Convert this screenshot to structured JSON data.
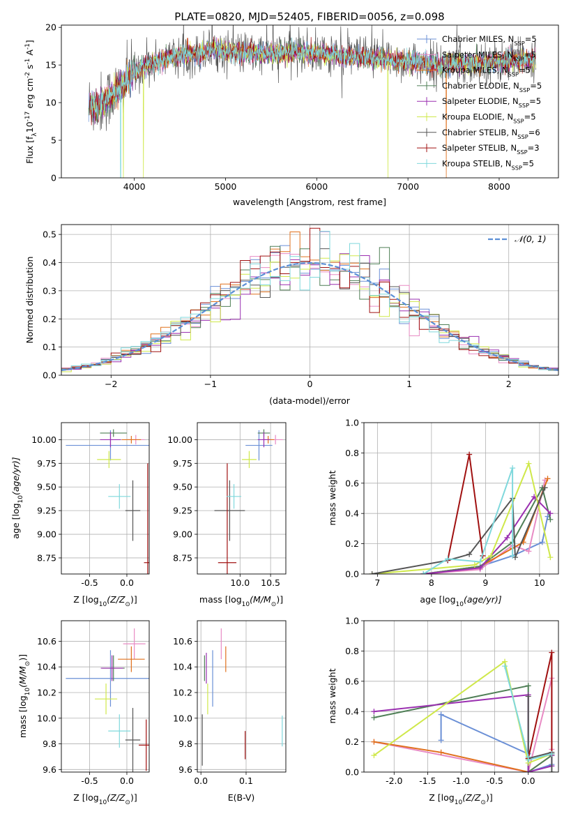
{
  "figure": {
    "title": "PLATE=0820, MJD=52405, FIBERID=0056, z=0.098"
  },
  "series_styles": [
    {
      "name": "Chabrier MILES, N$_{SSP}$=5",
      "label": "Chabrier MILES, N",
      "sub": "SSP",
      "suffix": "=5",
      "color": "#6a8fd6"
    },
    {
      "name": "Salpeter MILES, N$_{SSP}$=5",
      "label": "Salpeter MILES, N",
      "sub": "SSP",
      "suffix": "=5",
      "color": "#e88bc4"
    },
    {
      "name": "Kroupa MILES, N$_{SSP}$=5",
      "label": "Kroupa MILES, N",
      "sub": "SSP",
      "suffix": "=5",
      "color": "#e0701c"
    },
    {
      "name": "Chabrier ELODIE, N$_{SSP}$=5",
      "label": "Chabrier ELODIE, N",
      "sub": "SSP",
      "suffix": "=5",
      "color": "#4f7f56"
    },
    {
      "name": "Salpeter ELODIE, N$_{SSP}$=5",
      "label": "Salpeter ELODIE, N",
      "sub": "SSP",
      "suffix": "=5",
      "color": "#9a2fb0"
    },
    {
      "name": "Kroupa ELODIE, N$_{SSP}$=5",
      "label": "Kroupa ELODIE, N",
      "sub": "SSP",
      "suffix": "=5",
      "color": "#cfe84a"
    },
    {
      "name": "Chabrier STELIB, N$_{SSP}$=6",
      "label": "Chabrier STELIB, N",
      "sub": "SSP",
      "suffix": "=6",
      "color": "#555555"
    },
    {
      "name": "Salpeter STELIB, N$_{SSP}$=3",
      "label": "Salpeter STELIB, N",
      "sub": "SSP",
      "suffix": "=3",
      "color": "#a01010"
    },
    {
      "name": "Kroupa STELIB, N$_{SSP}$=5",
      "label": "Kroupa STELIB, N",
      "sub": "SSP",
      "suffix": "=5",
      "color": "#7fd8dc"
    }
  ],
  "chart_data": [
    {
      "id": "spectrum",
      "type": "line",
      "xlabel": "wavelength [Angstrom, rest frame]",
      "ylabel_parts": [
        "Flux [f",
        "λ",
        "10",
        "-17",
        " erg cm",
        "-2",
        " s",
        "-1",
        " A",
        "-1",
        "]"
      ],
      "xlim": [
        3200,
        8650
      ],
      "ylim": [
        0,
        20.3
      ],
      "xticks": [
        4000,
        5000,
        6000,
        7000,
        8000
      ],
      "yticks": [
        0,
        5,
        10,
        15,
        20
      ],
      "legend_position": "upper right",
      "profile_wavelength": [
        3500,
        3600,
        3700,
        3800,
        3900,
        4000,
        4100,
        4200,
        4300,
        4400,
        4500,
        4600,
        4700,
        4800,
        4900,
        5000,
        5200,
        5400,
        5600,
        5800,
        6000,
        6200,
        6400,
        6600,
        6800,
        7000,
        7200,
        7400,
        7600,
        7800,
        8000,
        8200,
        8400
      ],
      "profile_flux": [
        9.8,
        9.5,
        10.5,
        11.5,
        12.5,
        14.0,
        15.0,
        15.3,
        15.6,
        16.0,
        16.2,
        16.5,
        16.5,
        16.8,
        17.2,
        16.8,
        16.6,
        16.5,
        16.6,
        16.7,
        16.5,
        16.3,
        16.1,
        15.9,
        15.7,
        15.5,
        15.2,
        15.0,
        15.2,
        15.3,
        15.4,
        15.6,
        15.7
      ],
      "drops": [
        {
          "series": 2,
          "wavelength": 3480
        },
        {
          "series": 5,
          "wavelength": 3880
        },
        {
          "series": 8,
          "wavelength": 3850
        },
        {
          "series": 5,
          "wavelength": 4100
        },
        {
          "series": 2,
          "wavelength": 7420
        },
        {
          "series": 5,
          "wavelength": 6780
        }
      ]
    },
    {
      "id": "residual-histogram",
      "type": "step",
      "xlabel": "(data-model)/error",
      "ylabel": "Normed distribution",
      "xlim": [
        -2.5,
        2.5
      ],
      "ylim": [
        0,
        0.535
      ],
      "xticks": [
        -2,
        -1,
        0,
        1,
        2
      ],
      "yticks": [
        0,
        0.1,
        0.2,
        0.3,
        0.4,
        0.5
      ],
      "bin_width": 0.1,
      "legend": "𝒩(0, 1)",
      "legend_position": "upper right",
      "gaussian_color": "#5b8fd6"
    },
    {
      "id": "age-vs-Z",
      "type": "scatter",
      "xlabel_parts": [
        "Z [log",
        "10",
        "(Z/Z",
        "⊙",
        ")]"
      ],
      "ylabel_parts": [
        "age  [log",
        "10",
        "(age/yr)]"
      ],
      "xlim": [
        -0.88,
        0.3
      ],
      "ylim": [
        8.58,
        10.18
      ],
      "xticks": [
        -0.5,
        0.0
      ],
      "yticks": [
        8.75,
        9.0,
        9.25,
        9.5,
        9.75,
        10.0
      ],
      "points": [
        {
          "series": 0,
          "x": -0.22,
          "y": 9.94,
          "xerr": 0.6,
          "yerr": 0.16
        },
        {
          "series": 1,
          "x": 0.12,
          "y": 10.0,
          "xerr": 0.12,
          "yerr": 0.05
        },
        {
          "series": 2,
          "x": 0.06,
          "y": 10.0,
          "xerr": 0.13,
          "yerr": 0.04
        },
        {
          "series": 3,
          "x": -0.18,
          "y": 10.07,
          "xerr": 0.18,
          "yerr": 0.04
        },
        {
          "series": 4,
          "x": -0.22,
          "y": 10.0,
          "xerr": 0.14,
          "yerr": 0.08
        },
        {
          "series": 5,
          "x": -0.24,
          "y": 9.79,
          "xerr": 0.16,
          "yerr": 0.09
        },
        {
          "series": 6,
          "x": 0.08,
          "y": 9.25,
          "xerr": 0.1,
          "yerr": 0.32
        },
        {
          "series": 7,
          "x": 0.28,
          "y": 8.7,
          "xerr": 0.05,
          "yerr": 1.05
        },
        {
          "series": 8,
          "x": -0.1,
          "y": 9.4,
          "xerr": 0.15,
          "yerr": 0.13
        }
      ]
    },
    {
      "id": "age-vs-mass",
      "type": "scatter",
      "xlabel_parts": [
        "mass [log",
        "10",
        "(M/M",
        "⊙",
        ")]"
      ],
      "ylabel_parts": [],
      "xlim": [
        9.3,
        10.75
      ],
      "ylim": [
        8.58,
        10.18
      ],
      "xticks": [
        10.0,
        10.5
      ],
      "yticks": [
        8.75,
        9.0,
        9.25,
        9.5,
        9.75,
        10.0
      ],
      "points": [
        {
          "series": 0,
          "x": 10.31,
          "y": 9.94,
          "xerr": 0.22,
          "yerr": 0.16
        },
        {
          "series": 1,
          "x": 10.58,
          "y": 10.0,
          "xerr": 0.12,
          "yerr": 0.05
        },
        {
          "series": 2,
          "x": 10.46,
          "y": 10.0,
          "xerr": 0.1,
          "yerr": 0.04
        },
        {
          "series": 3,
          "x": 10.39,
          "y": 10.07,
          "xerr": 0.1,
          "yerr": 0.04
        },
        {
          "series": 4,
          "x": 10.39,
          "y": 10.0,
          "xerr": 0.1,
          "yerr": 0.08
        },
        {
          "series": 5,
          "x": 10.15,
          "y": 9.79,
          "xerr": 0.12,
          "yerr": 0.09
        },
        {
          "series": 6,
          "x": 9.83,
          "y": 9.25,
          "xerr": 0.25,
          "yerr": 0.32
        },
        {
          "series": 7,
          "x": 9.79,
          "y": 8.7,
          "xerr": 0.15,
          "yerr": 1.05
        },
        {
          "series": 8,
          "x": 9.9,
          "y": 9.4,
          "xerr": 0.12,
          "yerr": 0.13
        }
      ]
    },
    {
      "id": "mass-weight-vs-age",
      "type": "line",
      "xlabel_parts": [
        "age  [log",
        "10",
        "(age/yr)]"
      ],
      "ylabel": "mass weight",
      "xlim": [
        6.75,
        10.35
      ],
      "ylim": [
        0,
        1.0
      ],
      "xticks": [
        7,
        8,
        9,
        10
      ],
      "yticks": [
        0,
        0.2,
        0.4,
        0.6,
        0.8,
        1.0
      ],
      "series_points": [
        {
          "series": 0,
          "x": [
            7.85,
            8.9,
            9.5,
            10.05,
            10.15
          ],
          "y": [
            0.0,
            0.05,
            0.12,
            0.21,
            0.38
          ]
        },
        {
          "series": 1,
          "x": [
            7.85,
            8.9,
            9.5,
            9.8,
            10.1
          ],
          "y": [
            0.0,
            0.03,
            0.19,
            0.15,
            0.62
          ]
        },
        {
          "series": 2,
          "x": [
            7.85,
            8.9,
            9.5,
            9.7,
            10.15
          ],
          "y": [
            0.0,
            0.05,
            0.17,
            0.21,
            0.63
          ]
        },
        {
          "series": 3,
          "x": [
            7.85,
            8.9,
            9.5,
            10.05,
            10.2
          ],
          "y": [
            0.0,
            0.05,
            0.21,
            0.57,
            0.36
          ]
        },
        {
          "series": 4,
          "x": [
            7.85,
            8.9,
            9.4,
            9.9,
            10.2
          ],
          "y": [
            0.0,
            0.04,
            0.24,
            0.51,
            0.4
          ]
        },
        {
          "series": 5,
          "x": [
            6.9,
            8.8,
            9.1,
            9.8,
            10.2
          ],
          "y": [
            0.0,
            0.06,
            0.12,
            0.73,
            0.11
          ]
        },
        {
          "series": 6,
          "x": [
            6.9,
            8.3,
            8.7,
            9.5,
            9.55,
            10.1
          ],
          "y": [
            0.0,
            0.09,
            0.13,
            0.5,
            0.11,
            0.57
          ]
        },
        {
          "series": 7,
          "x": [
            8.3,
            8.7,
            8.95
          ],
          "y": [
            0.09,
            0.79,
            0.12
          ]
        },
        {
          "series": 8,
          "x": [
            7.85,
            8.3,
            8.9,
            9.5,
            9.5
          ],
          "y": [
            0.0,
            0.1,
            0.08,
            0.7,
            0.12
          ]
        }
      ]
    },
    {
      "id": "mass-vs-Z",
      "type": "scatter",
      "xlabel_parts": [
        "Z [log",
        "10",
        "(Z/Z",
        "⊙",
        ")]"
      ],
      "ylabel_parts": [
        "mass [log",
        "10",
        "(M/M",
        "⊙",
        ")]"
      ],
      "xlim": [
        -0.88,
        0.3
      ],
      "ylim": [
        9.58,
        10.76
      ],
      "xticks": [
        -0.5,
        0.0
      ],
      "yticks": [
        9.6,
        9.8,
        10.0,
        10.2,
        10.4,
        10.6
      ],
      "points": [
        {
          "series": 0,
          "x": -0.22,
          "y": 10.31,
          "xerr": 0.6,
          "yerr": 0.22
        },
        {
          "series": 1,
          "x": 0.1,
          "y": 10.58,
          "xerr": 0.15,
          "yerr": 0.12
        },
        {
          "series": 2,
          "x": 0.06,
          "y": 10.46,
          "xerr": 0.18,
          "yerr": 0.1
        },
        {
          "series": 3,
          "x": -0.18,
          "y": 10.39,
          "xerr": 0.15,
          "yerr": 0.1
        },
        {
          "series": 4,
          "x": -0.2,
          "y": 10.39,
          "xerr": 0.15,
          "yerr": 0.1
        },
        {
          "series": 5,
          "x": -0.28,
          "y": 10.15,
          "xerr": 0.15,
          "yerr": 0.12
        },
        {
          "series": 6,
          "x": 0.08,
          "y": 9.83,
          "xerr": 0.1,
          "yerr": 0.25
        },
        {
          "series": 7,
          "x": 0.26,
          "y": 9.79,
          "xerr": 0.1,
          "yerr": 0.2
        },
        {
          "series": 8,
          "x": -0.1,
          "y": 9.9,
          "xerr": 0.15,
          "yerr": 0.13
        }
      ]
    },
    {
      "id": "mass-vs-EBV",
      "type": "scatter",
      "xlabel": "E(B-V)",
      "xlim": [
        -0.008,
        0.188
      ],
      "ylim": [
        9.58,
        10.76
      ],
      "xticks": [
        0.0,
        0.1
      ],
      "yticks": [
        9.6,
        9.8,
        10.0,
        10.2,
        10.4,
        10.6
      ],
      "points": [
        {
          "series": 0,
          "x": 0.026,
          "y": 10.31,
          "yerr": 0.22
        },
        {
          "series": 1,
          "x": 0.045,
          "y": 10.58,
          "yerr": 0.12
        },
        {
          "series": 2,
          "x": 0.055,
          "y": 10.46,
          "yerr": 0.1
        },
        {
          "series": 3,
          "x": 0.008,
          "y": 10.39,
          "yerr": 0.1
        },
        {
          "series": 4,
          "x": 0.012,
          "y": 10.39,
          "yerr": 0.12
        },
        {
          "series": 5,
          "x": 0.015,
          "y": 10.15,
          "yerr": 0.12
        },
        {
          "series": 6,
          "x": 0.003,
          "y": 9.83,
          "yerr": 0.2
        },
        {
          "series": 7,
          "x": 0.098,
          "y": 9.79,
          "yerr": 0.11
        },
        {
          "series": 8,
          "x": 0.18,
          "y": 9.9,
          "yerr": 0.12
        }
      ]
    },
    {
      "id": "mass-weight-vs-Z",
      "type": "line",
      "xlabel_parts": [
        "Z [log",
        "10",
        "(Z/Z",
        "⊙",
        ")]"
      ],
      "ylabel": "mass weight",
      "xlim": [
        -2.45,
        0.45
      ],
      "ylim": [
        0,
        1.0
      ],
      "xticks": [
        -2.0,
        -1.5,
        -1.0,
        -0.5,
        0.0
      ],
      "yticks": [
        0,
        0.2,
        0.4,
        0.6,
        0.8,
        1.0
      ],
      "series_points": [
        {
          "series": 0,
          "x": [
            -1.3,
            -1.3,
            0.0,
            0.0,
            0.35
          ],
          "y": [
            0.21,
            0.38,
            0.12,
            0.0,
            0.05
          ]
        },
        {
          "series": 1,
          "x": [
            -2.3,
            0.0,
            0.35,
            0.35
          ],
          "y": [
            0.2,
            0.0,
            0.62,
            0.15
          ]
        },
        {
          "series": 2,
          "x": [
            -2.3,
            -1.3,
            0.0,
            0.35
          ],
          "y": [
            0.2,
            0.13,
            0.0,
            0.11
          ]
        },
        {
          "series": 3,
          "x": [
            -2.3,
            0.0,
            0.0,
            0.35
          ],
          "y": [
            0.36,
            0.57,
            0.0,
            0.11
          ]
        },
        {
          "series": 4,
          "x": [
            -2.3,
            0.0,
            0.0,
            0.35,
            0.35
          ],
          "y": [
            0.4,
            0.51,
            0.0,
            0.04,
            0.11
          ]
        },
        {
          "series": 5,
          "x": [
            -2.3,
            -0.35,
            0.0,
            0.35
          ],
          "y": [
            0.11,
            0.73,
            0.06,
            0.12
          ]
        },
        {
          "series": 6,
          "x": [
            0.0,
            0.0,
            0.35,
            0.35
          ],
          "y": [
            0.5,
            0.09,
            0.13,
            0.0
          ]
        },
        {
          "series": 7,
          "x": [
            0.0,
            0.35,
            0.35
          ],
          "y": [
            0.09,
            0.79,
            0.12
          ]
        },
        {
          "series": 8,
          "x": [
            -0.35,
            0.0,
            0.0,
            0.35
          ],
          "y": [
            0.7,
            0.1,
            0.08,
            0.12
          ]
        }
      ]
    }
  ]
}
